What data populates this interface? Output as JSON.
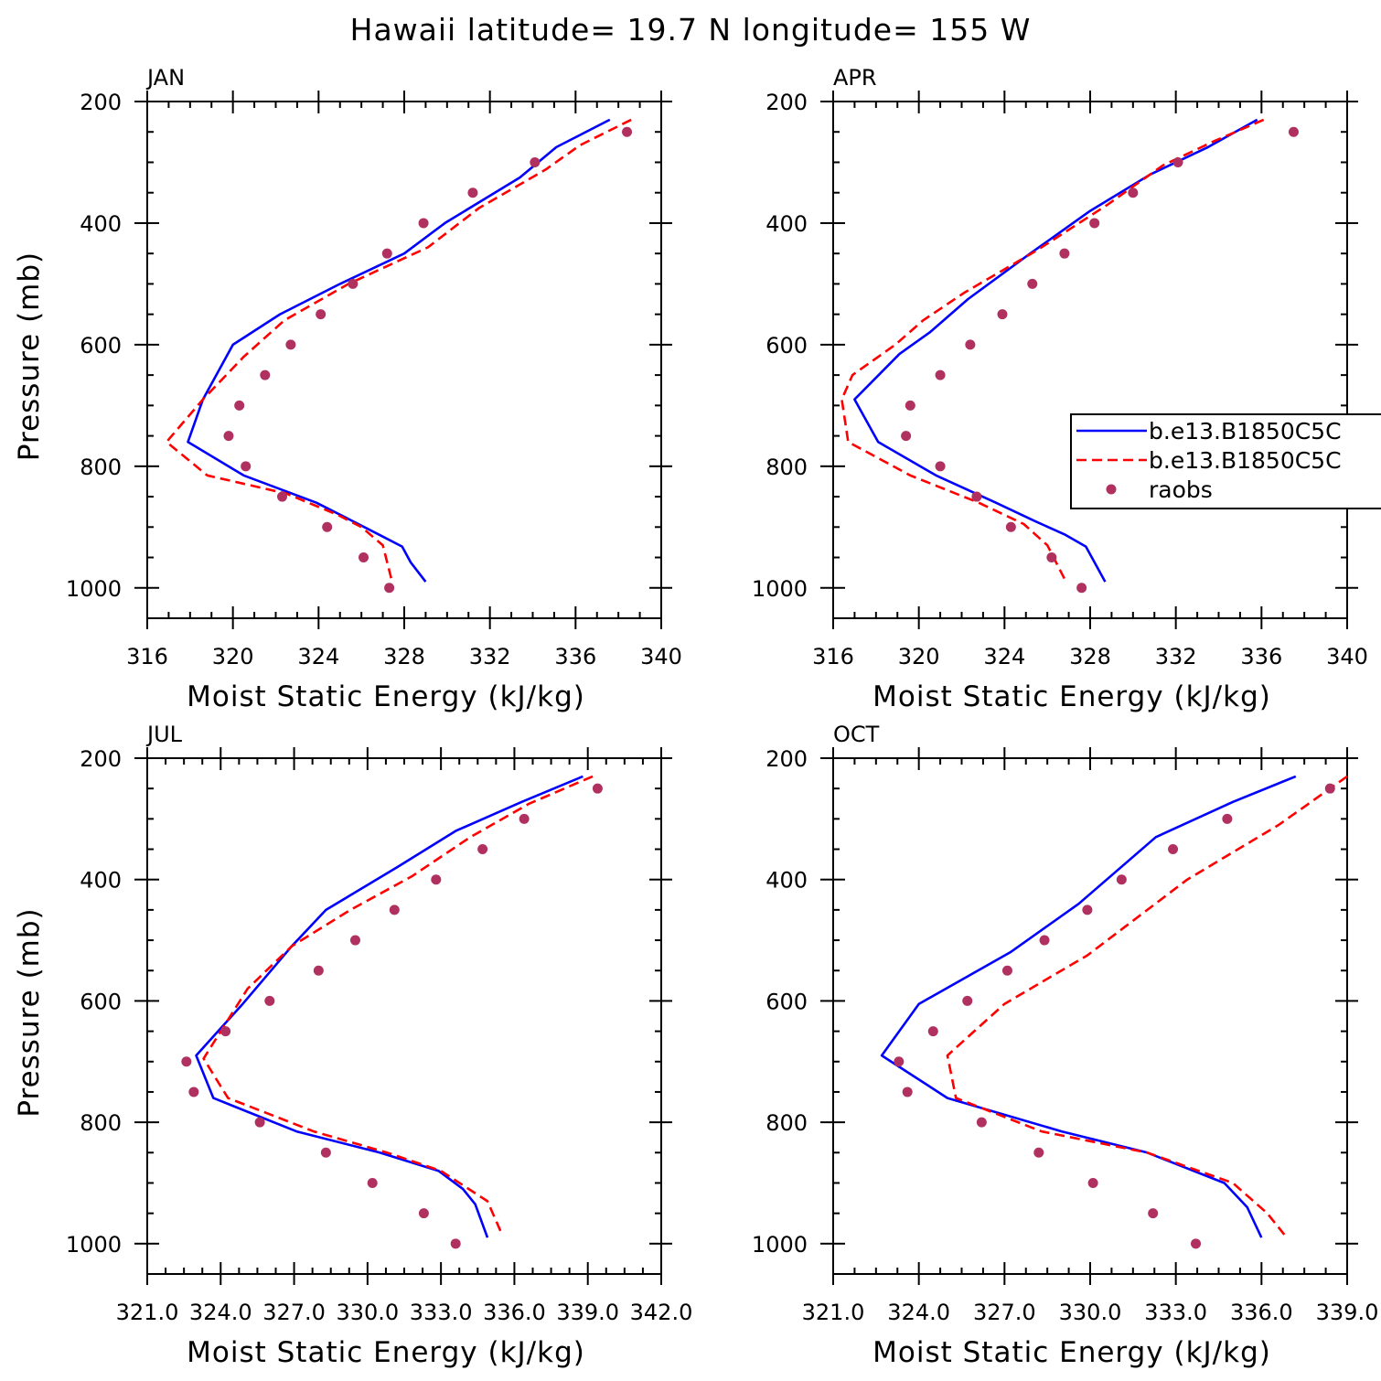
{
  "figure": {
    "title": "Hawaii  latitude= 19.7 N longitude= 155 W"
  },
  "chart_data": [
    {
      "type": "line",
      "panel": "JAN",
      "xlabel": "Moist Static Energy (kJ/kg)",
      "ylabel": "Pressure (mb)",
      "xlim": [
        316,
        340
      ],
      "xticks": [
        316,
        320,
        324,
        328,
        332,
        336,
        340
      ],
      "xtick_labels": [
        "316",
        "320",
        "324",
        "328",
        "332",
        "336",
        "340"
      ],
      "ylim": [
        1050,
        200
      ],
      "yticks": [
        200,
        400,
        600,
        800,
        1000
      ],
      "yticks_minor_step": 50,
      "xticks_minor_step": 1,
      "series": [
        {
          "name": "b.e13.B1850C5C",
          "style": "solid",
          "color": "#0000ff",
          "x": [
            337.6,
            335.1,
            333.4,
            329.9,
            328.0,
            325.0,
            322.2,
            320.0,
            318.6,
            317.9,
            320.5,
            323.9,
            325.3,
            326.8,
            327.9,
            328.3,
            329.0
          ],
          "y": [
            230,
            275,
            325,
            400,
            450,
            500,
            550,
            600,
            690,
            760,
            815,
            860,
            885,
            912,
            932,
            958,
            990
          ]
        },
        {
          "name": "b.e13.B1850C5C",
          "style": "dashed",
          "color": "#ff0000",
          "x": [
            338.6,
            336.2,
            334.6,
            331.5,
            329.1,
            325.4,
            322.4,
            320.5,
            318.6,
            316.9,
            318.8,
            322.5,
            324.9,
            326.0,
            327.0,
            327.4
          ],
          "y": [
            230,
            272,
            312,
            375,
            440,
            500,
            560,
            620,
            690,
            760,
            815,
            845,
            880,
            900,
            930,
            985
          ]
        },
        {
          "name": "raobs",
          "style": "markers",
          "color": "#b03060",
          "x": [
            338.4,
            334.1,
            331.2,
            328.9,
            327.2,
            325.6,
            324.1,
            322.7,
            321.5,
            320.3,
            319.8,
            320.6,
            322.3,
            324.4,
            326.1,
            327.3
          ],
          "y": [
            250,
            300,
            350,
            400,
            450,
            500,
            550,
            600,
            650,
            700,
            750,
            800,
            850,
            900,
            950,
            1000
          ]
        }
      ]
    },
    {
      "type": "line",
      "panel": "APR",
      "xlabel": "Moist Static Energy (kJ/kg)",
      "ylabel": "",
      "xlim": [
        316,
        340
      ],
      "xticks": [
        316,
        320,
        324,
        328,
        332,
        336,
        340
      ],
      "xtick_labels": [
        "316",
        "320",
        "324",
        "328",
        "332",
        "336",
        "340"
      ],
      "ylim": [
        1050,
        200
      ],
      "yticks": [
        200,
        400,
        600,
        800,
        1000
      ],
      "yticks_minor_step": 50,
      "xticks_minor_step": 1,
      "series": [
        {
          "name": "b.e13.B1850C5C",
          "style": "solid",
          "color": "#0000ff",
          "x": [
            335.8,
            333.5,
            330.8,
            328.0,
            325.2,
            322.3,
            320.5,
            319.1,
            317.0,
            318.1,
            320.8,
            323.6,
            325.4,
            326.8,
            327.8,
            328.2,
            328.7
          ],
          "y": [
            230,
            275,
            320,
            380,
            450,
            525,
            580,
            615,
            690,
            760,
            815,
            860,
            890,
            912,
            932,
            958,
            990
          ]
        },
        {
          "name": "b.e13.B1850C5C",
          "style": "dashed",
          "color": "#ff0000",
          "x": [
            336.1,
            333.8,
            331.4,
            328.8,
            325.5,
            322.1,
            320.2,
            318.9,
            316.9,
            316.4,
            316.7,
            319.6,
            322.8,
            324.9,
            326.0,
            326.8
          ],
          "y": [
            230,
            265,
            305,
            370,
            445,
            515,
            560,
            600,
            650,
            690,
            760,
            815,
            860,
            895,
            930,
            985
          ]
        },
        {
          "name": "raobs",
          "style": "markers",
          "color": "#b03060",
          "x": [
            337.5,
            332.1,
            330.0,
            328.2,
            326.8,
            325.3,
            323.9,
            322.4,
            321.0,
            319.6,
            319.4,
            321.0,
            322.7,
            324.3,
            326.2,
            327.6
          ],
          "y": [
            250,
            300,
            350,
            400,
            450,
            500,
            550,
            600,
            650,
            700,
            750,
            800,
            850,
            900,
            950,
            1000
          ]
        }
      ]
    },
    {
      "type": "line",
      "panel": "JUL",
      "xlabel": "Moist Static Energy (kJ/kg)",
      "ylabel": "Pressure (mb)",
      "xlim": [
        321.0,
        342.0
      ],
      "xticks": [
        321.0,
        324.0,
        327.0,
        330.0,
        333.0,
        336.0,
        339.0,
        342.0
      ],
      "xtick_labels": [
        "321.0",
        "324.0",
        "327.0",
        "330.0",
        "333.0",
        "336.0",
        "339.0",
        "342.0"
      ],
      "ylim": [
        1050,
        200
      ],
      "yticks": [
        200,
        400,
        600,
        800,
        1000
      ],
      "yticks_minor_step": 50,
      "xticks_minor_step": 0.75,
      "series": [
        {
          "name": "b.e13.B1850C5C",
          "style": "solid",
          "color": "#0000ff",
          "x": [
            338.8,
            336.3,
            333.6,
            331.2,
            328.3,
            326.9,
            324.9,
            323.0,
            323.7,
            327.1,
            330.5,
            332.9,
            333.9,
            334.4,
            334.9
          ],
          "y": [
            230,
            272,
            320,
            380,
            450,
            510,
            605,
            690,
            760,
            815,
            850,
            880,
            910,
            935,
            990
          ]
        },
        {
          "name": "b.e13.B1850C5C",
          "style": "dashed",
          "color": "#ff0000",
          "x": [
            339.2,
            336.6,
            334.2,
            331.8,
            329.3,
            326.9,
            325.1,
            323.3,
            324.3,
            327.8,
            330.8,
            333.0,
            334.9,
            335.5
          ],
          "y": [
            230,
            275,
            330,
            395,
            450,
            510,
            580,
            695,
            760,
            815,
            850,
            880,
            930,
            985
          ]
        },
        {
          "name": "raobs",
          "style": "markers",
          "color": "#b03060",
          "x": [
            339.4,
            336.4,
            334.7,
            332.8,
            331.1,
            329.5,
            328.0,
            326.0,
            324.2,
            322.6,
            322.9,
            325.6,
            328.3,
            330.2,
            332.3,
            333.6
          ],
          "y": [
            250,
            300,
            350,
            400,
            450,
            500,
            550,
            600,
            650,
            700,
            750,
            800,
            850,
            900,
            950,
            1000
          ]
        }
      ]
    },
    {
      "type": "line",
      "panel": "OCT",
      "xlabel": "Moist Static Energy (kJ/kg)",
      "ylabel": "",
      "xlim": [
        321.0,
        339.0
      ],
      "xticks": [
        321.0,
        324.0,
        327.0,
        330.0,
        333.0,
        336.0,
        339.0
      ],
      "xtick_labels": [
        "321.0",
        "324.0",
        "327.0",
        "330.0",
        "333.0",
        "336.0",
        "339.0"
      ],
      "ylim": [
        1050,
        200
      ],
      "yticks": [
        200,
        400,
        600,
        800,
        1000
      ],
      "yticks_minor_step": 50,
      "xticks_minor_step": 0.75,
      "series": [
        {
          "name": "b.e13.B1850C5C",
          "style": "solid",
          "color": "#0000ff",
          "x": [
            337.2,
            335.0,
            332.3,
            329.6,
            327.2,
            324.0,
            322.7,
            325.0,
            329.0,
            332.0,
            334.7,
            335.5,
            336.0
          ],
          "y": [
            230,
            272,
            330,
            440,
            520,
            605,
            690,
            760,
            815,
            850,
            900,
            940,
            990
          ]
        },
        {
          "name": "b.e13.B1850C5C",
          "style": "dashed",
          "color": "#ff0000",
          "x": [
            339.0,
            336.6,
            333.4,
            329.9,
            327.0,
            325.0,
            325.3,
            328.3,
            332.0,
            335.0,
            336.2,
            336.8
          ],
          "y": [
            230,
            310,
            400,
            525,
            605,
            690,
            760,
            815,
            850,
            900,
            950,
            985
          ]
        },
        {
          "name": "raobs",
          "style": "markers",
          "color": "#b03060",
          "x": [
            338.4,
            334.8,
            332.9,
            331.1,
            329.9,
            328.4,
            327.1,
            325.7,
            324.5,
            323.3,
            323.6,
            326.2,
            328.2,
            330.1,
            332.2,
            333.7
          ],
          "y": [
            250,
            300,
            350,
            400,
            450,
            500,
            550,
            600,
            650,
            700,
            750,
            800,
            850,
            900,
            950,
            1000
          ]
        }
      ]
    }
  ],
  "legend": {
    "panel": "APR",
    "placement": "center-right, clipped by figure edge",
    "entries": [
      {
        "label": "b.e13.B1850C5C",
        "style": "solid",
        "color": "#0000ff"
      },
      {
        "label": "b.e13.B1850C5C",
        "style": "dashed",
        "color": "#ff0000"
      },
      {
        "label": "raobs",
        "style": "markers",
        "color": "#b03060"
      }
    ]
  }
}
